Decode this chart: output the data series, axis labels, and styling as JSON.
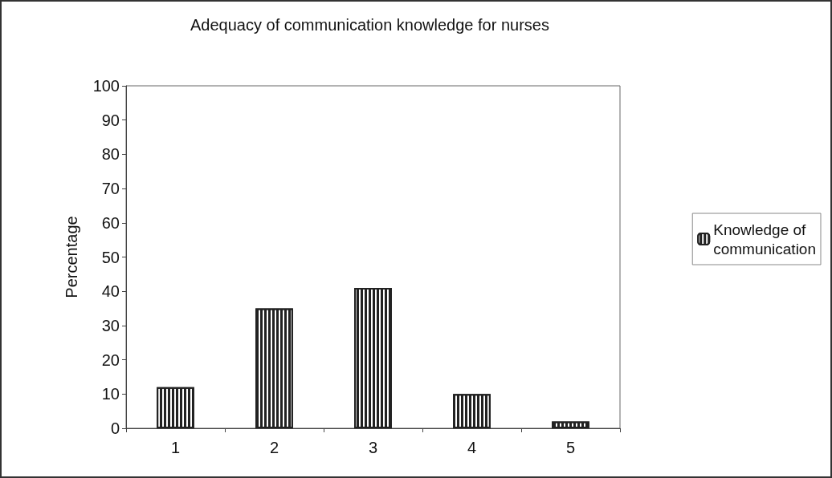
{
  "chart_data": {
    "type": "bar",
    "title": "Adequacy of communication knowledge for nurses",
    "ylabel": "Percentage",
    "categories": [
      "1",
      "2",
      "3",
      "4",
      "5"
    ],
    "series": [
      {
        "name": "Knowledge of\ncommunication",
        "color": "#222222",
        "values": [
          12,
          35,
          41,
          10,
          2
        ]
      }
    ],
    "ylim": [
      0,
      100
    ],
    "yticks": [
      0,
      10,
      20,
      30,
      40,
      50,
      60,
      70,
      80,
      90,
      100
    ],
    "grid": false,
    "legend": "right"
  }
}
